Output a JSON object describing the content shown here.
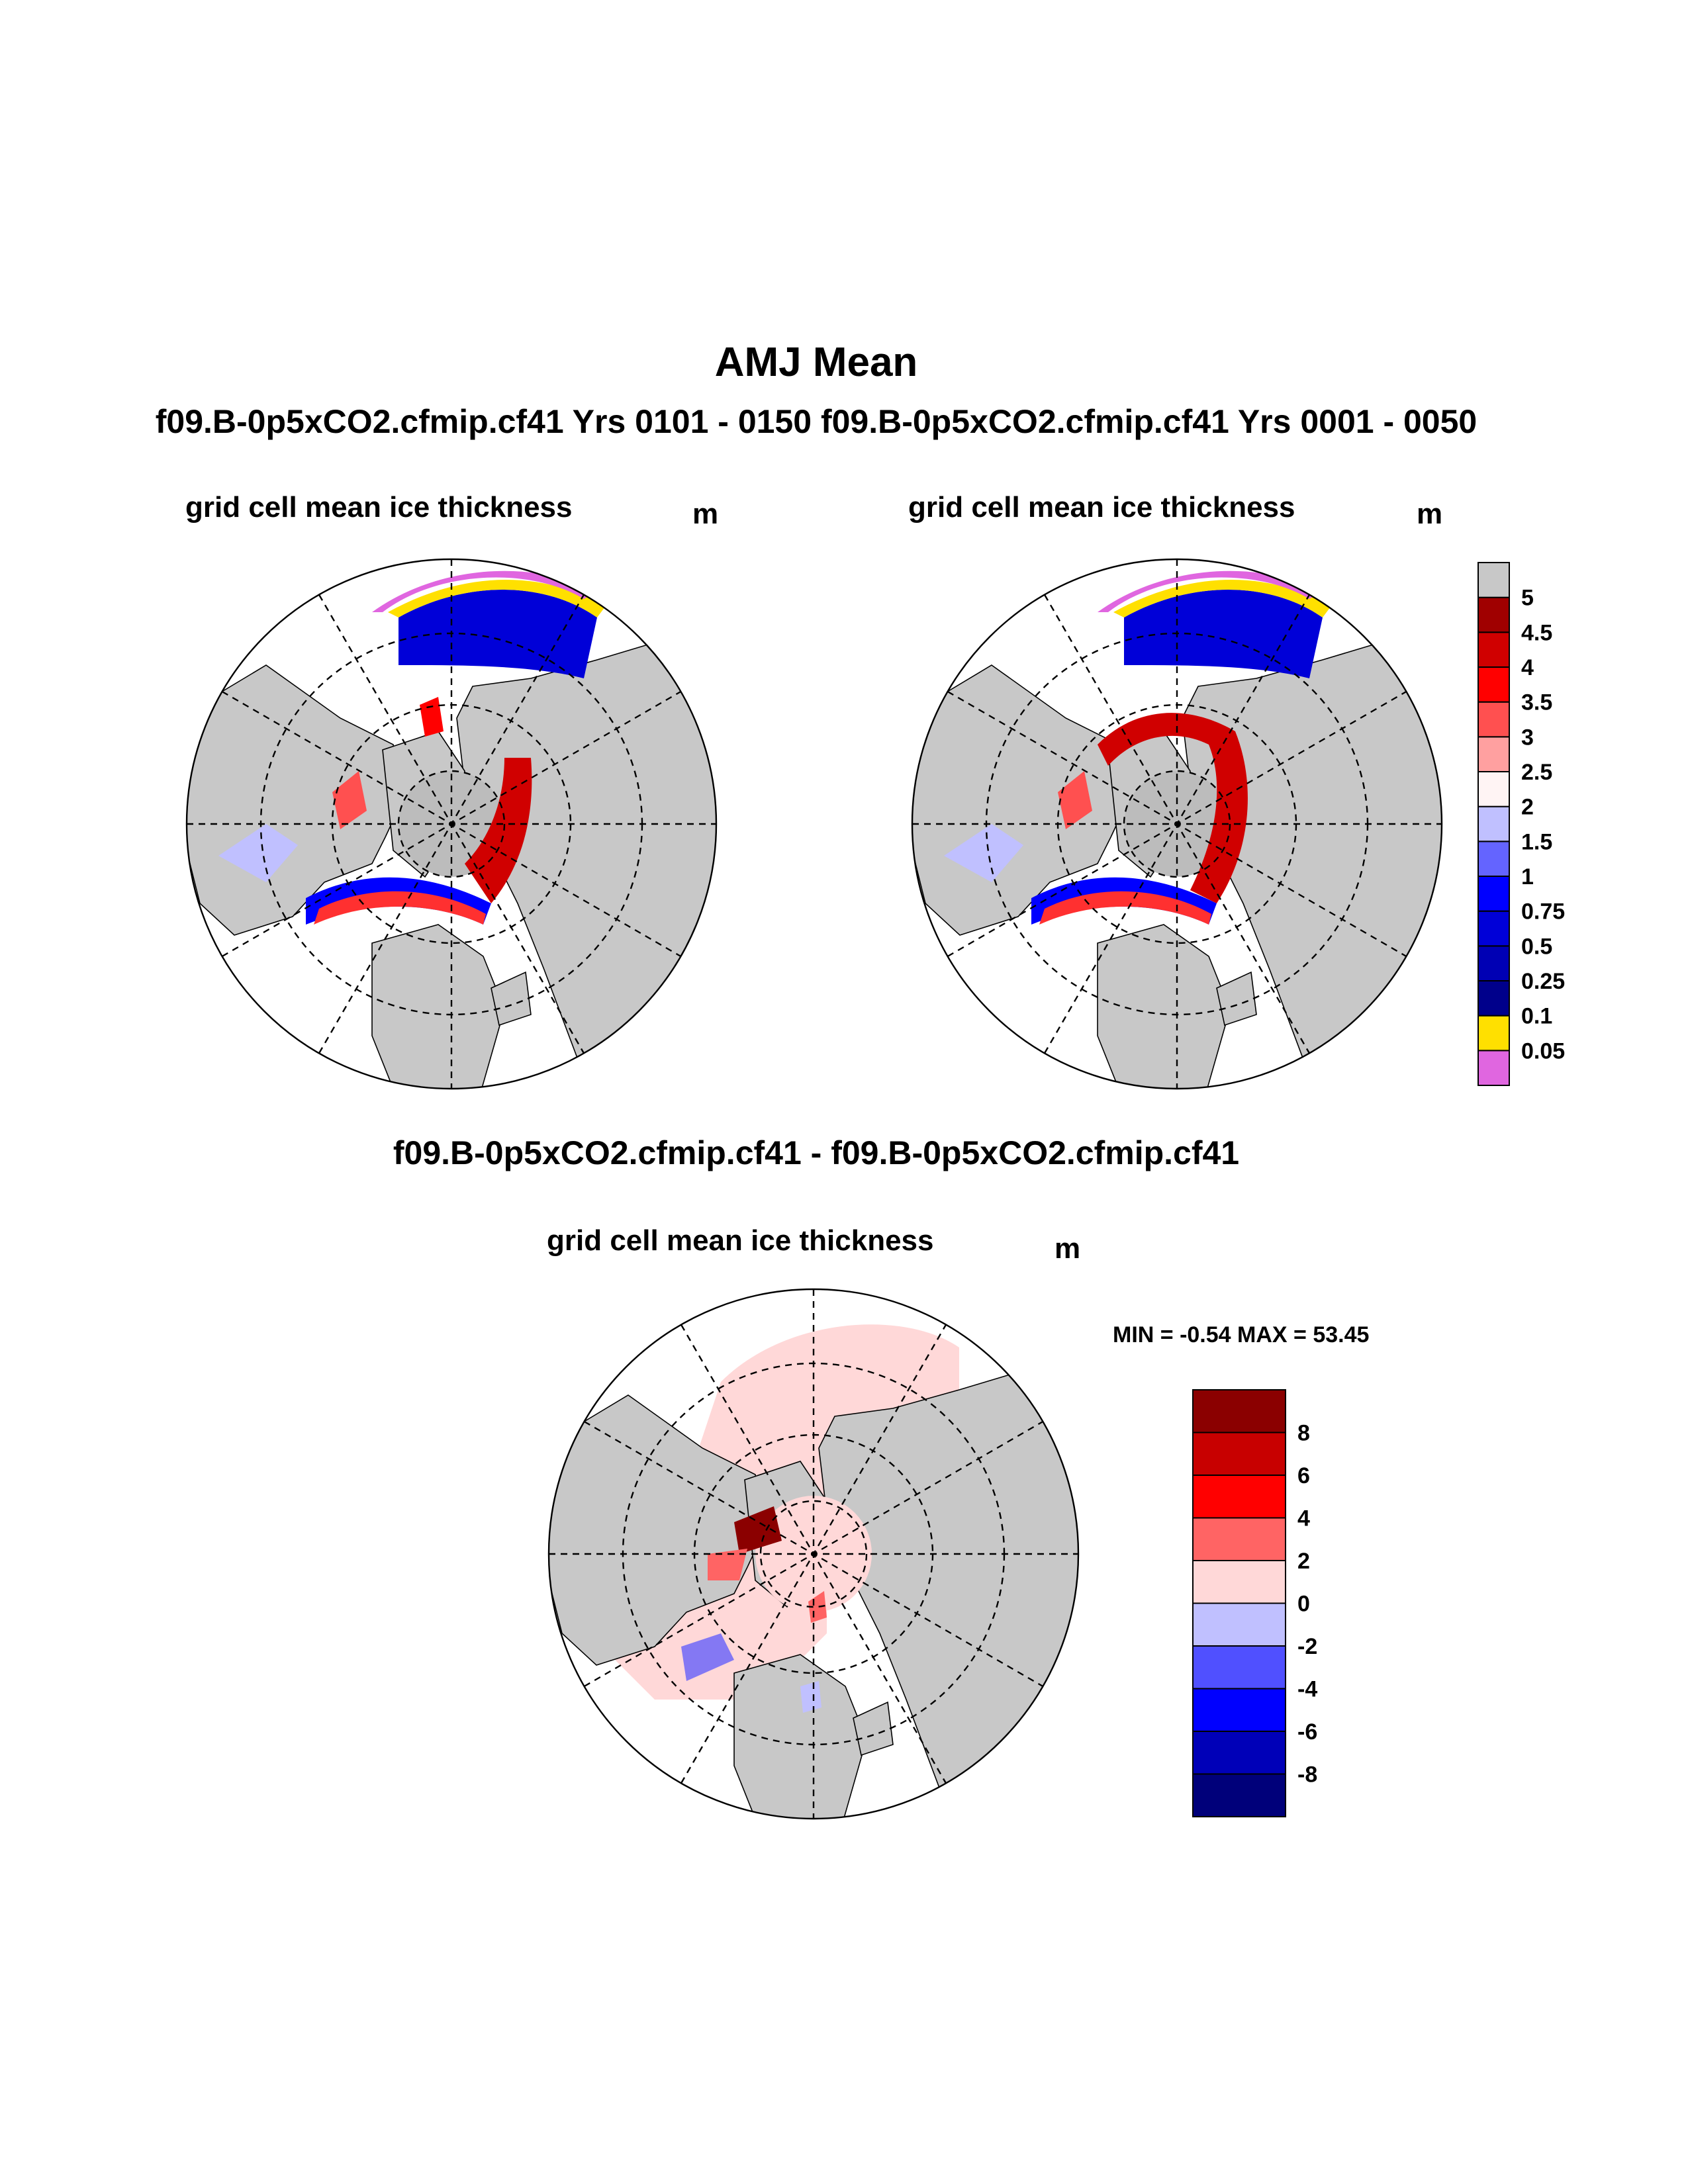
{
  "title": "AMJ Mean",
  "subtitle": "f09.B-0p5xCO2.cfmip.cf41  Yrs 0101 - 0150 f09.B-0p5xCO2.cfmip.cf41  Yrs 0001 - 0050",
  "diff_title": "f09.B-0p5xCO2.cfmip.cf41 - f09.B-0p5xCO2.cfmip.cf41",
  "panels": [
    {
      "title": "grid cell mean ice thickness",
      "units": "m"
    },
    {
      "title": "grid cell mean ice thickness",
      "units": "m"
    },
    {
      "title": "grid cell mean ice thickness",
      "units": "m"
    }
  ],
  "min_max": "MIN =  -0.54 MAX =  53.45",
  "chart_data": [
    {
      "type": "heatmap",
      "projection": "north polar stereographic",
      "title": "grid cell mean ice thickness",
      "case": "f09.B-0p5xCO2.cfmip.cf41  Yrs 0101 - 0150",
      "season": "AMJ",
      "units": "m",
      "colorbar": {
        "levels": [
          0.05,
          0.1,
          0.25,
          0.5,
          0.75,
          1,
          1.5,
          2,
          2.5,
          3,
          3.5,
          4,
          4.5,
          5
        ],
        "labels": [
          "0.05",
          "0.1",
          "0.25",
          "0.5",
          "0.75",
          "1",
          "1.5",
          "2",
          "2.5",
          "3",
          "3.5",
          "4",
          "4.5",
          "5"
        ],
        "colors": [
          "#e066e0",
          "#ffe000",
          "#00008b",
          "#0000b4",
          "#0000d8",
          "#0000ff",
          "#6464ff",
          "#c0c0ff",
          "#fff4f4",
          "#ffa0a0",
          "#ff5050",
          "#ff0000",
          "#d00000",
          "#a00000",
          "#c8c8c8"
        ]
      }
    },
    {
      "type": "heatmap",
      "projection": "north polar stereographic",
      "title": "grid cell mean ice thickness",
      "case": "f09.B-0p5xCO2.cfmip.cf41  Yrs 0001 - 0050",
      "season": "AMJ",
      "units": "m",
      "colorbar": "shared with panel 1"
    },
    {
      "type": "heatmap",
      "projection": "north polar stereographic",
      "title": "grid cell mean ice thickness",
      "case": "difference",
      "units": "m",
      "min": -0.54,
      "max": 53.45,
      "colorbar": {
        "levels": [
          -8,
          -6,
          -4,
          -2,
          0,
          2,
          4,
          6,
          8
        ],
        "labels": [
          "-8",
          "-6",
          "-4",
          "-2",
          "0",
          "2",
          "4",
          "6",
          "8"
        ],
        "colors": [
          "#00007a",
          "#0000b8",
          "#0000ff",
          "#5050ff",
          "#c0c0ff",
          "#ffd8d8",
          "#ff6464",
          "#ff0000",
          "#c80000",
          "#8b0000"
        ]
      }
    }
  ],
  "colors": {
    "land": "#c8c8c8",
    "ocean": "#ffffff",
    "pole_hole": "#bcbcbc"
  }
}
